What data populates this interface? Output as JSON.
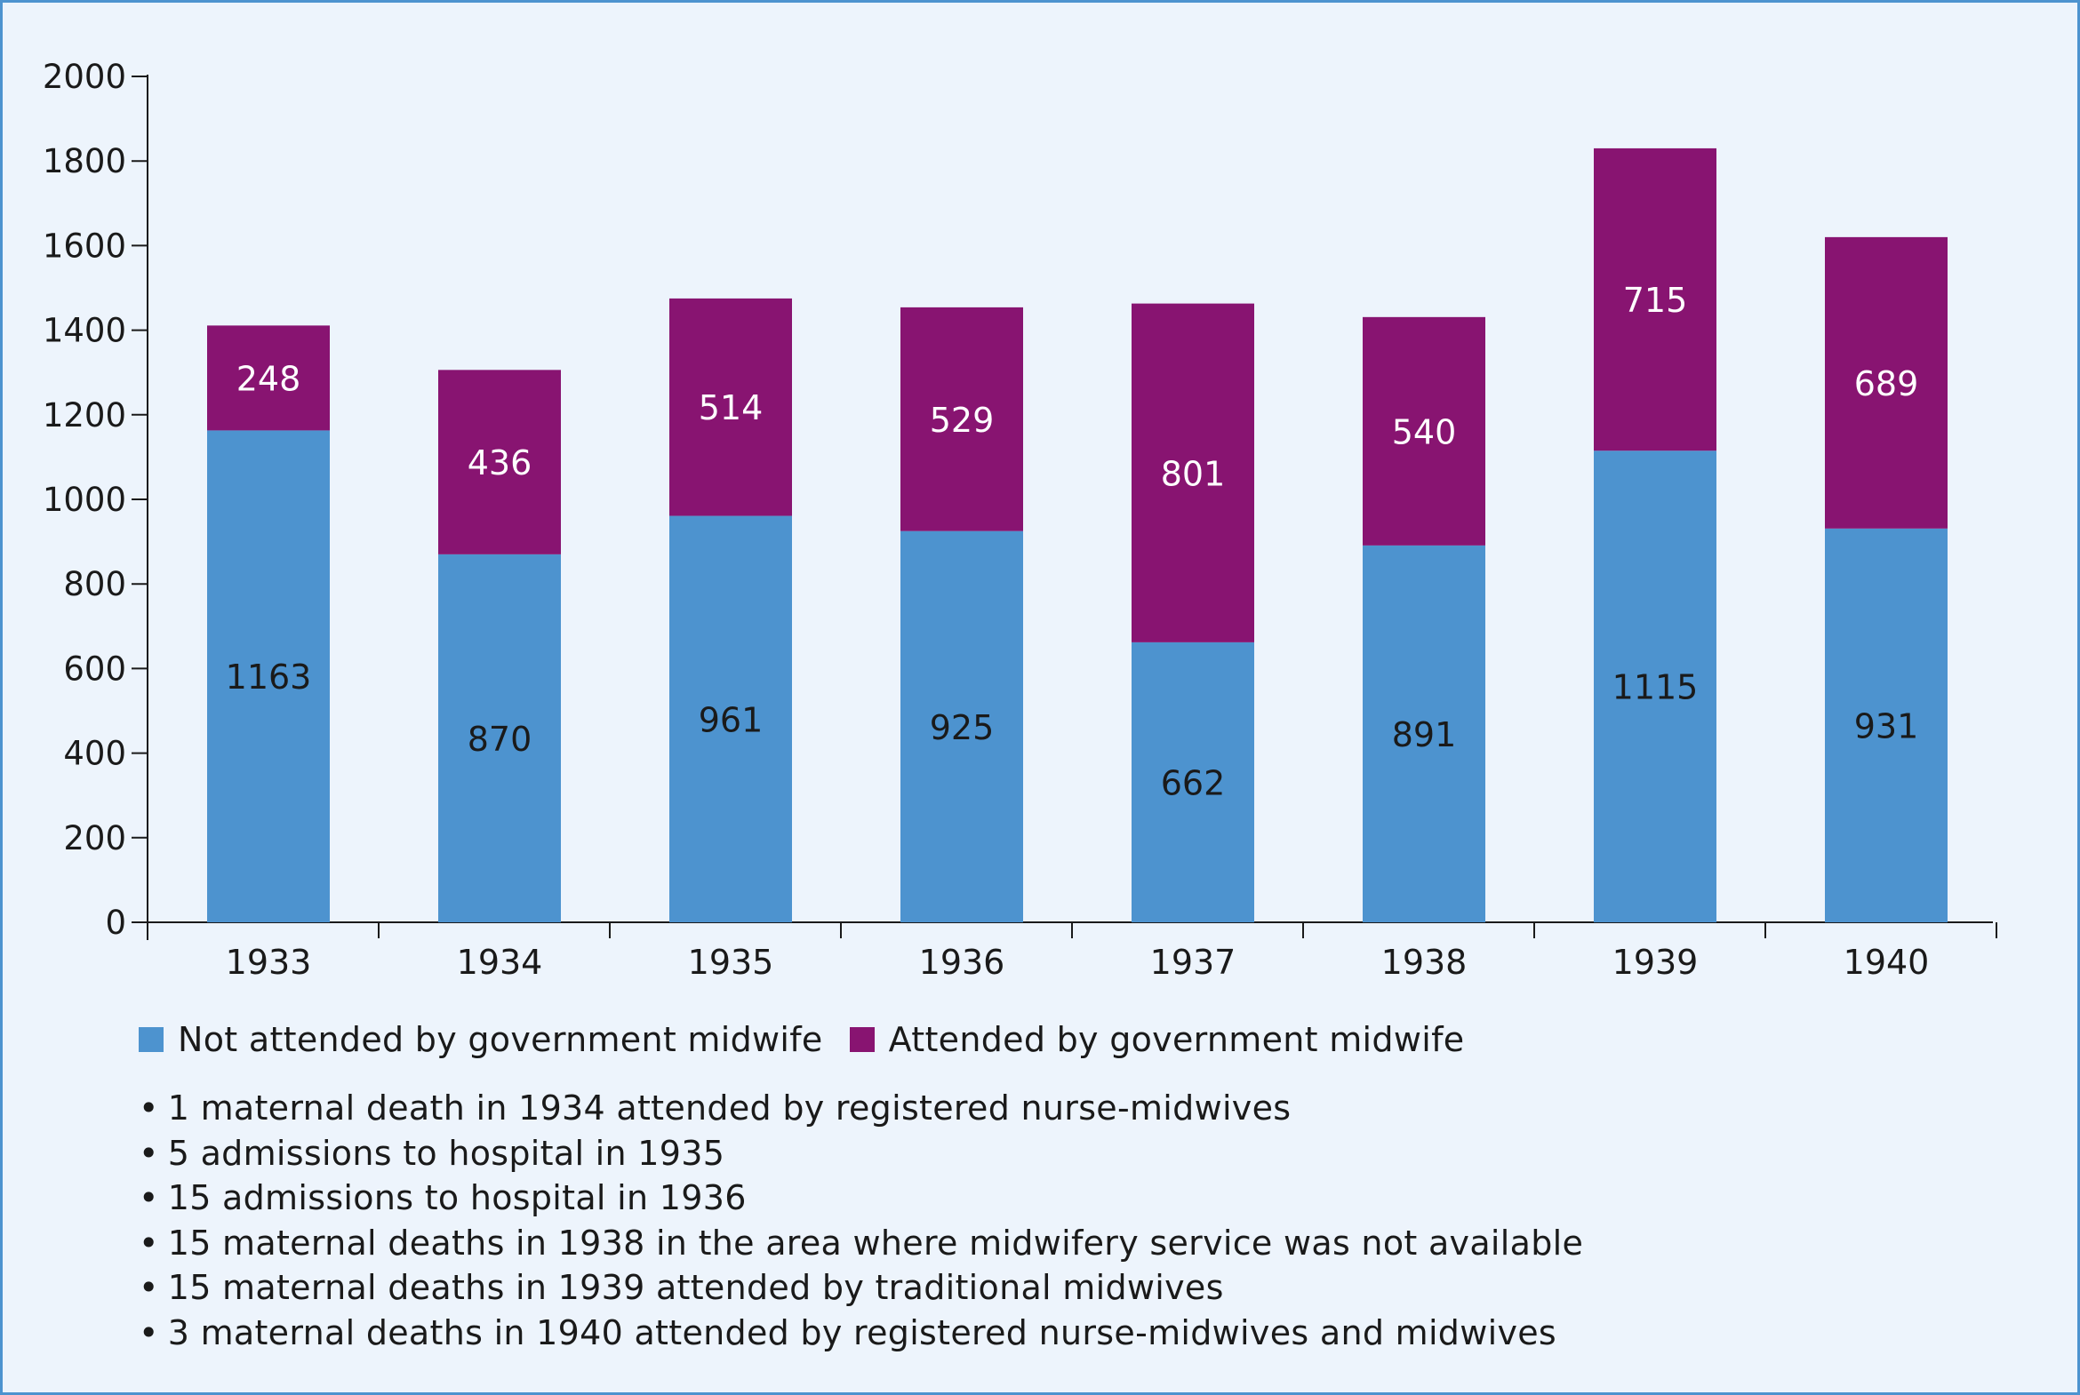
{
  "colors": {
    "not_attended": "#4d93cf",
    "attended": "#881471",
    "background": "#edf4fc"
  },
  "chart_data": {
    "type": "bar",
    "stacked": true,
    "categories": [
      "1933",
      "1934",
      "1935",
      "1936",
      "1937",
      "1938",
      "1939",
      "1940"
    ],
    "series": [
      {
        "name": "Not attended by government midwife",
        "values": [
          1163,
          870,
          961,
          925,
          662,
          891,
          1115,
          931
        ]
      },
      {
        "name": "Attended by government midwife",
        "values": [
          248,
          436,
          514,
          529,
          801,
          540,
          715,
          689
        ]
      }
    ],
    "ylim": [
      0,
      2000
    ],
    "yticks": [
      0,
      200,
      400,
      600,
      800,
      1000,
      1200,
      1400,
      1600,
      1800,
      2000
    ],
    "title": "",
    "xlabel": "",
    "ylabel": "",
    "grid": false,
    "legend_position": "bottom-left",
    "data_labels": true
  },
  "legend": {
    "items": [
      "Not attended by government midwife",
      "Attended by government midwife"
    ]
  },
  "notes": [
    "1 maternal death in 1934 attended by registered nurse-midwives",
    "5 admissions to hospital in 1935",
    "15 admissions to hospital in 1936",
    "15 maternal deaths in 1938 in the area where midwifery service was not available",
    "15 maternal deaths in 1939 attended by traditional midwives",
    "3 maternal deaths in 1940 attended by registered nurse-midwives and midwives"
  ]
}
